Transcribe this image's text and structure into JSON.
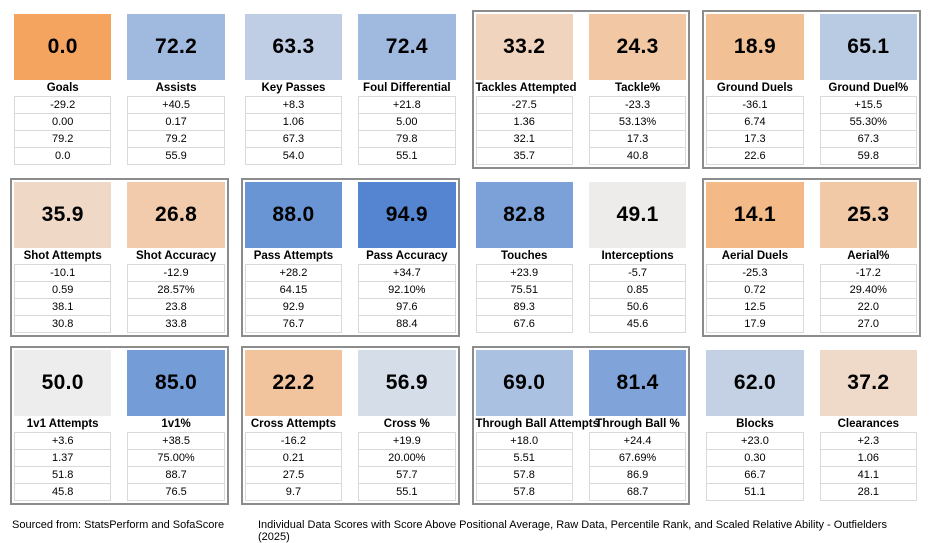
{
  "chart_data": {
    "type": "table",
    "title": "Individual Data Scores with Score Above Positional Average, Raw Data, Percentile Rank, and Scaled Relative Ability - Outfielders (2025)",
    "source": "Sourced from: StatsPerform and SofaScore",
    "value_row_semantics": [
      "Score Above Positional Average",
      "Raw Data",
      "Percentile Rank",
      "Scaled Relative Ability"
    ],
    "score_scale": {
      "range": [
        0,
        100
      ],
      "low_color": "#F5A45F",
      "mid_color": "#EDEDED",
      "high_color": "#4079CD"
    },
    "rows": [
      {
        "groups": [
          {
            "bordered": false,
            "cards": [
              {
                "label": "Goals",
                "score": "0.0",
                "color": "#F5A45F",
                "values": [
                  "-29.2",
                  "0.00",
                  "79.2",
                  "0.0"
                ]
              },
              {
                "label": "Assists",
                "score": "72.2",
                "color": "#A0B9DF",
                "values": [
                  "+40.5",
                  "0.17",
                  "79.2",
                  "55.9"
                ]
              }
            ]
          },
          {
            "bordered": false,
            "cards": [
              {
                "label": "Key Passes",
                "score": "63.3",
                "color": "#BFCEE4",
                "values": [
                  "+8.3",
                  "1.06",
                  "67.3",
                  "54.0"
                ]
              },
              {
                "label": "Foul Differential",
                "score": "72.4",
                "color": "#9FB9DF",
                "values": [
                  "+21.8",
                  "5.00",
                  "79.8",
                  "55.1"
                ]
              }
            ]
          },
          {
            "bordered": true,
            "cards": [
              {
                "label": "Tackles Attempted",
                "score": "33.2",
                "color": "#F0D4BD",
                "values": [
                  "-27.5",
                  "1.36",
                  "32.1",
                  "35.7"
                ]
              },
              {
                "label": "Tackle%",
                "score": "24.3",
                "color": "#F1C7A4",
                "values": [
                  "-23.3",
                  "53.13%",
                  "17.3",
                  "40.8"
                ]
              }
            ]
          },
          {
            "bordered": true,
            "cards": [
              {
                "label": "Ground Duels",
                "score": "18.9",
                "color": "#F2C095",
                "values": [
                  "-36.1",
                  "6.74",
                  "17.3",
                  "22.6"
                ]
              },
              {
                "label": "Ground Duel%",
                "score": "65.1",
                "color": "#B9CAE3",
                "values": [
                  "+15.5",
                  "55.30%",
                  "67.3",
                  "59.8"
                ]
              }
            ]
          }
        ]
      },
      {
        "groups": [
          {
            "bordered": true,
            "cards": [
              {
                "label": "Shot Attempts",
                "score": "35.9",
                "color": "#EFD8C5",
                "values": [
                  "-10.1",
                  "0.59",
                  "38.1",
                  "30.8"
                ]
              },
              {
                "label": "Shot Accuracy",
                "score": "26.8",
                "color": "#F1CBAB",
                "values": [
                  "-12.9",
                  "28.57%",
                  "23.8",
                  "33.8"
                ]
              }
            ]
          },
          {
            "bordered": true,
            "cards": [
              {
                "label": "Pass Attempts",
                "score": "88.0",
                "color": "#6995D5",
                "values": [
                  "+28.2",
                  "64.15",
                  "92.9",
                  "76.7"
                ]
              },
              {
                "label": "Pass Accuracy",
                "score": "94.9",
                "color": "#5585D0",
                "values": [
                  "+34.7",
                  "92.10%",
                  "97.6",
                  "88.4"
                ]
              }
            ]
          },
          {
            "bordered": false,
            "cards": [
              {
                "label": "Touches",
                "score": "82.8",
                "color": "#7BA1D8",
                "values": [
                  "+23.9",
                  "75.51",
                  "89.3",
                  "67.6"
                ]
              },
              {
                "label": "Interceptions",
                "score": "49.1",
                "color": "#EDECEA",
                "values": [
                  "-5.7",
                  "0.85",
                  "50.6",
                  "45.6"
                ]
              }
            ]
          },
          {
            "bordered": true,
            "cards": [
              {
                "label": "Aerial Duels",
                "score": "14.1",
                "color": "#F3B987",
                "values": [
                  "-25.3",
                  "0.72",
                  "12.5",
                  "17.9"
                ]
              },
              {
                "label": "Aerial%",
                "score": "25.3",
                "color": "#F1C9A7",
                "values": [
                  "-17.2",
                  "29.40%",
                  "22.0",
                  "27.0"
                ]
              }
            ]
          }
        ]
      },
      {
        "groups": [
          {
            "bordered": true,
            "cards": [
              {
                "label": "1v1 Attempts",
                "score": "50.0",
                "color": "#EDEDED",
                "values": [
                  "+3.6",
                  "1.37",
                  "51.8",
                  "45.8"
                ]
              },
              {
                "label": "1v1%",
                "score": "85.0",
                "color": "#749CD7",
                "values": [
                  "+38.5",
                  "75.00%",
                  "88.7",
                  "76.5"
                ]
              }
            ]
          },
          {
            "bordered": true,
            "cards": [
              {
                "label": "Cross Attempts",
                "score": "22.2",
                "color": "#F1C49E",
                "values": [
                  "-16.2",
                  "0.21",
                  "27.5",
                  "9.7"
                ]
              },
              {
                "label": "Cross %",
                "score": "56.9",
                "color": "#D5DDE9",
                "values": [
                  "+19.9",
                  "20.00%",
                  "57.7",
                  "55.1"
                ]
              }
            ]
          },
          {
            "bordered": true,
            "cards": [
              {
                "label": "Through Ball Attempts",
                "score": "69.0",
                "color": "#ABC1E1",
                "values": [
                  "+18.0",
                  "5.51",
                  "57.8",
                  "57.8"
                ]
              },
              {
                "label": "Through Ball %",
                "score": "81.4",
                "color": "#80A4D9",
                "values": [
                  "+24.4",
                  "67.69%",
                  "86.9",
                  "68.7"
                ]
              }
            ]
          },
          {
            "bordered": false,
            "cards": [
              {
                "label": "Blocks",
                "score": "62.0",
                "color": "#C4D1E5",
                "values": [
                  "+23.0",
                  "0.30",
                  "66.7",
                  "51.1"
                ]
              },
              {
                "label": "Clearances",
                "score": "37.2",
                "color": "#EFDAC9",
                "values": [
                  "+2.3",
                  "1.06",
                  "41.1",
                  "28.1"
                ]
              }
            ]
          }
        ]
      }
    ]
  }
}
